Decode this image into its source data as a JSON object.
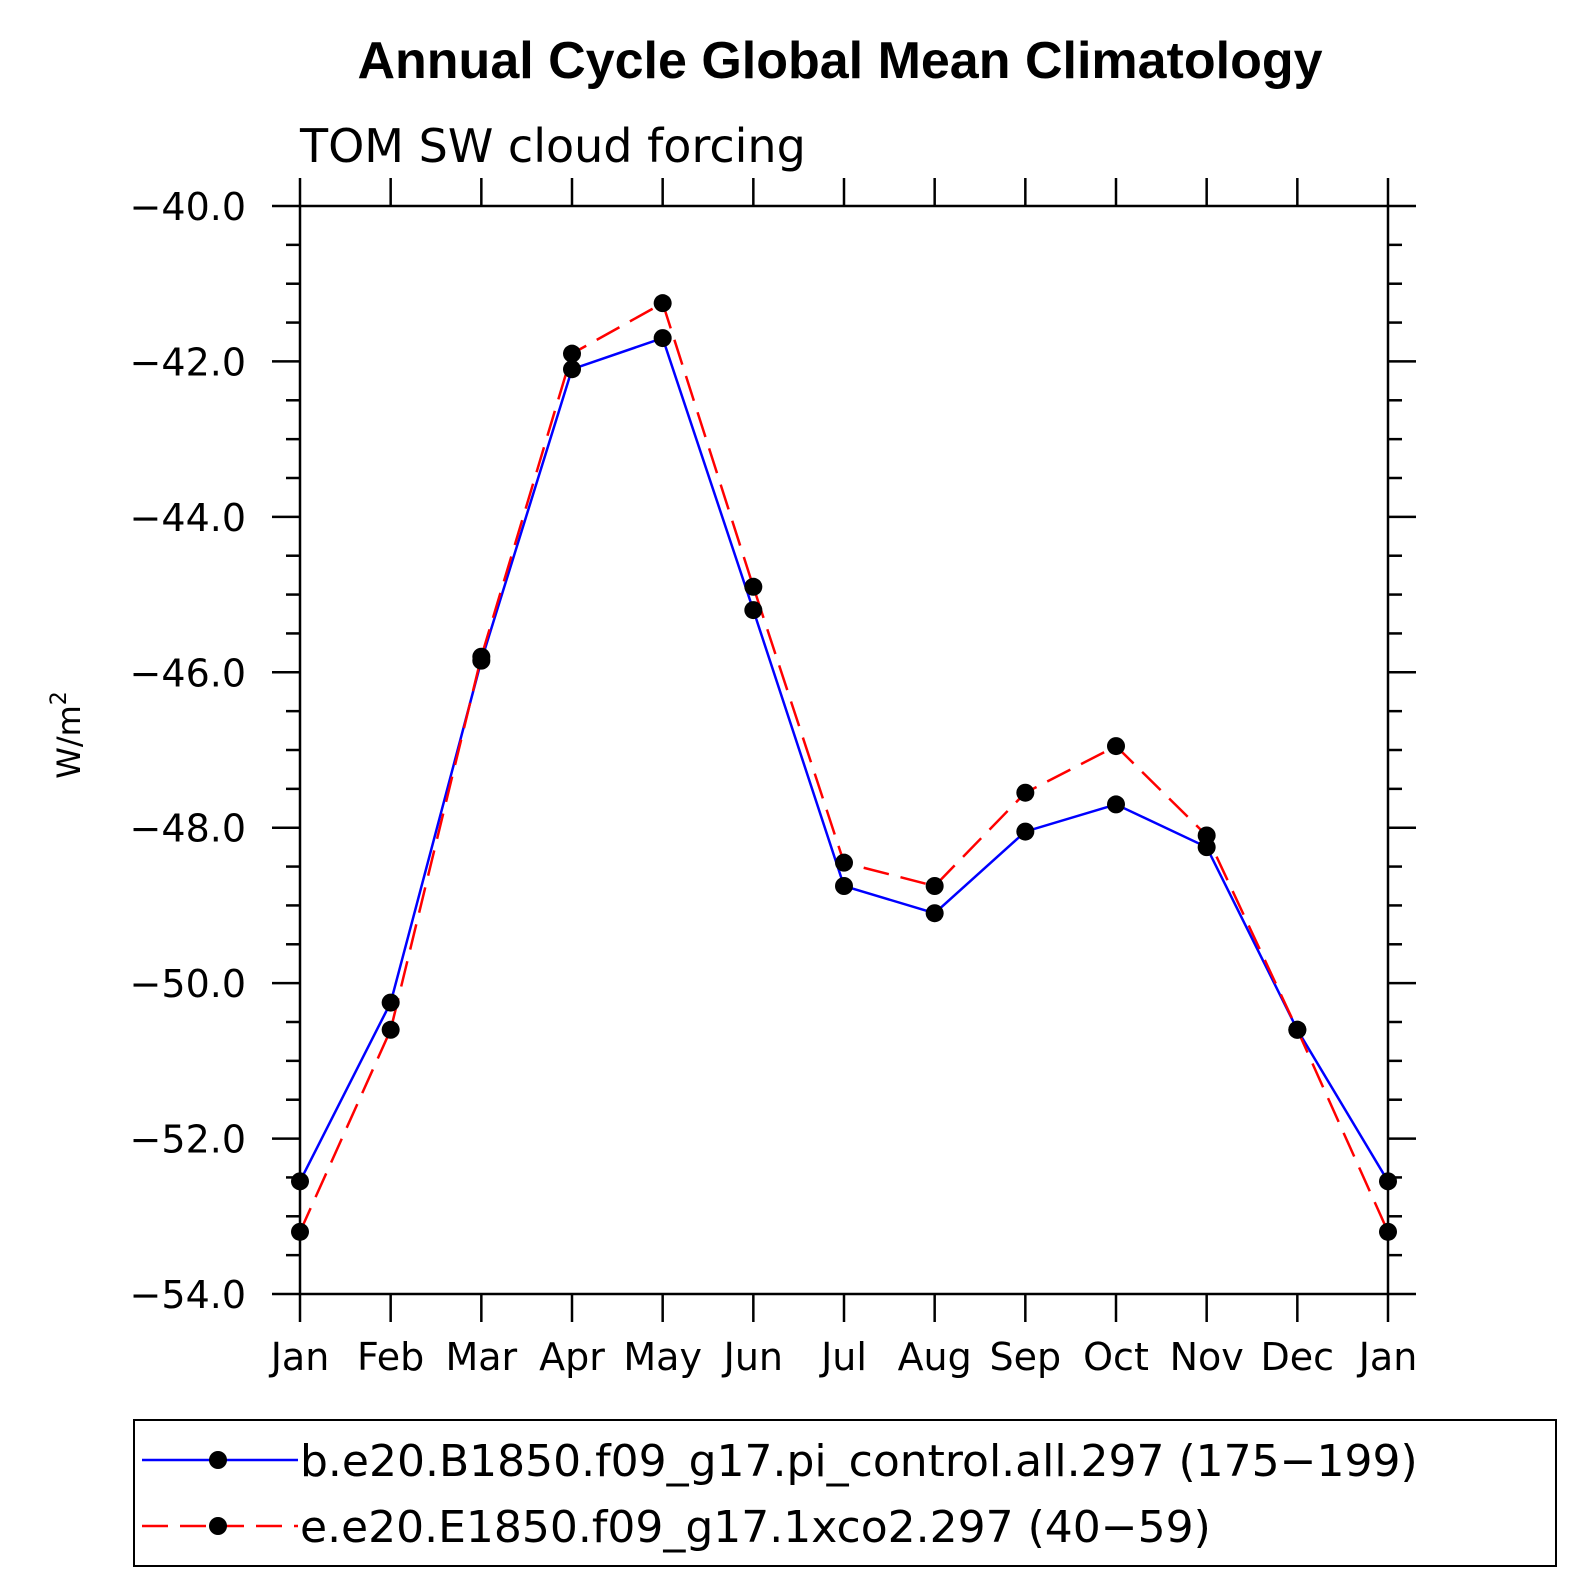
{
  "chart_data": {
    "type": "line",
    "title": "Annual Cycle Global Mean Climatology",
    "subtitle": "TOM SW cloud forcing",
    "ylabel": "W/m",
    "ylabel_superscript": "2",
    "xlabel": "",
    "categories": [
      "Jan",
      "Feb",
      "Mar",
      "Apr",
      "May",
      "Jun",
      "Jul",
      "Aug",
      "Sep",
      "Oct",
      "Nov",
      "Dec",
      "Jan"
    ],
    "ylim": [
      -54.0,
      -40.0
    ],
    "yticks": [
      "-40.0",
      "-42.0",
      "-44.0",
      "-46.0",
      "-48.0",
      "-50.0",
      "-52.0",
      "-54.0"
    ],
    "series": [
      {
        "name": "b.e20.B1850.f09_g17.pi_control.all.297 (175-199)",
        "color": "#0000ff",
        "style": "solid",
        "values": [
          -52.55,
          -50.25,
          -45.85,
          -42.1,
          -41.7,
          -45.2,
          -48.75,
          -49.1,
          -48.05,
          -47.7,
          -48.25,
          -50.6,
          -52.55
        ]
      },
      {
        "name": "e.e20.E1850.f09_g17.1xco2.297 (40-59)",
        "color": "#ff0000",
        "style": "dashed",
        "values": [
          -53.2,
          -50.6,
          -45.8,
          -41.9,
          -41.25,
          -44.9,
          -48.45,
          -48.75,
          -47.55,
          -46.95,
          -48.1,
          -50.6,
          -53.2
        ]
      }
    ],
    "legend_position": "bottom"
  }
}
